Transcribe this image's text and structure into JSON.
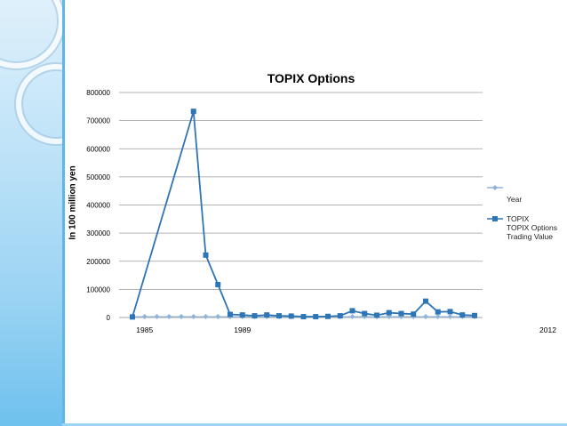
{
  "chart_data": {
    "type": "line",
    "title": "TOPIX Options",
    "ylabel": "In 100 million  yen",
    "ylim": [
      0,
      800000
    ],
    "yticks": [
      "0",
      "100000",
      "200000",
      "300000",
      "400000",
      "500000",
      "600000",
      "700000",
      "800000"
    ],
    "xtick_labels": [
      {
        "index": 1,
        "label": "1985"
      },
      {
        "index": 9,
        "label": "1989"
      },
      {
        "index": 34,
        "label": "2012"
      }
    ],
    "series": [
      {
        "name": "Year",
        "color": "#8fb4d9",
        "marker": "diamond",
        "x": [
          0,
          1,
          2,
          3,
          4,
          5,
          6,
          7,
          8,
          9,
          10,
          11,
          12,
          13,
          14,
          15,
          16,
          17,
          18,
          19,
          20,
          21,
          22,
          23,
          24,
          25,
          26,
          27,
          28
        ],
        "values": [
          1985,
          1986,
          1987,
          1988,
          1989,
          1990,
          1991,
          1992,
          1993,
          1994,
          1995,
          1996,
          1997,
          1998,
          1999,
          2000,
          2001,
          2002,
          2003,
          2004,
          2005,
          2006,
          2007,
          2008,
          2009,
          2010,
          2011,
          2012,
          2013
        ]
      },
      {
        "name": "TOPIX",
        "color": "#2e75b6",
        "marker": "square",
        "x": [
          0,
          5,
          6,
          7,
          8,
          9,
          10,
          11,
          12,
          13,
          14,
          15,
          16,
          17,
          18,
          19,
          20,
          21,
          22,
          23,
          24,
          25,
          26,
          27,
          28
        ],
        "values": [
          2000,
          733000,
          222000,
          117000,
          11000,
          9000,
          6000,
          9000,
          6000,
          5000,
          3000,
          3000,
          4000,
          6000,
          24000,
          14000,
          8000,
          17000,
          14000,
          12000,
          58000,
          20000,
          21000,
          9000,
          7000
        ]
      }
    ],
    "legend": [
      {
        "label": "Year"
      },
      {
        "label": "TOPIX",
        "sublabel": "TOPIX Options Trading Value"
      }
    ]
  }
}
